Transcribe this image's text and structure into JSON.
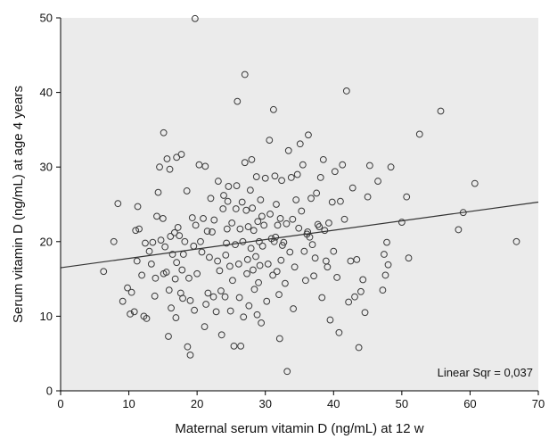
{
  "chart_data": {
    "type": "scatter",
    "title": "",
    "xlabel": "Maternal serum vitamin D (ng/mL) at 12 w",
    "ylabel": "Serum vitamin D (ng/mL) at age 4 years",
    "xlim": [
      0,
      70
    ],
    "ylim": [
      0,
      50
    ],
    "x_ticks": [
      0,
      10,
      20,
      30,
      40,
      50,
      60,
      70
    ],
    "y_ticks": [
      0,
      10,
      20,
      30,
      40,
      50
    ],
    "grid": false,
    "annotation": "Linear Sqr = 0,037",
    "fit_line": {
      "type": "linear",
      "x": [
        0,
        70
      ],
      "y": [
        16.5,
        25.3
      ]
    },
    "colors": {
      "plot_background": "#ebebeb",
      "marker_stroke": "#3a3a3a",
      "fit_line": "#333333",
      "axis": "#000000"
    },
    "points": [
      [
        6.3,
        16.0
      ],
      [
        7.8,
        20.0
      ],
      [
        8.4,
        25.1
      ],
      [
        9.1,
        12.0
      ],
      [
        9.8,
        13.8
      ],
      [
        10.2,
        10.3
      ],
      [
        10.4,
        13.2
      ],
      [
        10.8,
        10.6
      ],
      [
        11.0,
        21.5
      ],
      [
        11.2,
        17.4
      ],
      [
        11.3,
        24.7
      ],
      [
        11.5,
        21.7
      ],
      [
        11.9,
        15.5
      ],
      [
        12.2,
        10.0
      ],
      [
        12.4,
        19.8
      ],
      [
        12.6,
        9.7
      ],
      [
        13.0,
        18.7
      ],
      [
        13.3,
        17.0
      ],
      [
        13.5,
        19.9
      ],
      [
        13.8,
        12.7
      ],
      [
        13.9,
        15.1
      ],
      [
        14.1,
        23.4
      ],
      [
        14.3,
        26.6
      ],
      [
        14.5,
        30.0
      ],
      [
        14.7,
        20.2
      ],
      [
        15.1,
        15.7
      ],
      [
        15.1,
        34.6
      ],
      [
        15.0,
        23.1
      ],
      [
        15.3,
        19.3
      ],
      [
        15.5,
        15.9
      ],
      [
        15.6,
        31.1
      ],
      [
        15.9,
        13.5
      ],
      [
        15.8,
        7.3
      ],
      [
        16.0,
        29.7
      ],
      [
        16.1,
        20.7
      ],
      [
        16.2,
        11.1
      ],
      [
        16.4,
        18.3
      ],
      [
        16.7,
        21.2
      ],
      [
        16.8,
        15.0
      ],
      [
        16.9,
        9.8
      ],
      [
        17.0,
        31.3
      ],
      [
        17.0,
        17.2
      ],
      [
        17.2,
        21.9
      ],
      [
        17.4,
        20.8
      ],
      [
        17.7,
        31.7
      ],
      [
        17.8,
        16.2
      ],
      [
        17.6,
        13.1
      ],
      [
        17.9,
        12.4
      ],
      [
        18.0,
        18.3
      ],
      [
        18.2,
        20.0
      ],
      [
        18.5,
        26.8
      ],
      [
        18.6,
        5.9
      ],
      [
        18.8,
        15.1
      ],
      [
        19.0,
        12.1
      ],
      [
        19.0,
        4.8
      ],
      [
        19.3,
        23.2
      ],
      [
        19.5,
        19.4
      ],
      [
        19.6,
        10.8
      ],
      [
        19.8,
        22.2
      ],
      [
        19.7,
        49.9
      ],
      [
        20.0,
        15.7
      ],
      [
        20.3,
        30.3
      ],
      [
        20.5,
        20.0
      ],
      [
        20.7,
        18.6
      ],
      [
        20.9,
        23.1
      ],
      [
        21.1,
        8.6
      ],
      [
        21.3,
        11.6
      ],
      [
        21.5,
        21.4
      ],
      [
        21.6,
        13.1
      ],
      [
        21.8,
        17.9
      ],
      [
        22.0,
        25.8
      ],
      [
        22.2,
        21.3
      ],
      [
        22.4,
        12.6
      ],
      [
        22.5,
        22.9
      ],
      [
        22.8,
        10.6
      ],
      [
        23.0,
        17.4
      ],
      [
        23.1,
        28.1
      ],
      [
        23.3,
        16.1
      ],
      [
        23.5,
        13.4
      ],
      [
        23.6,
        7.5
      ],
      [
        23.8,
        24.4
      ],
      [
        23.9,
        26.2
      ],
      [
        24.1,
        12.6
      ],
      [
        24.2,
        18.2
      ],
      [
        24.4,
        21.7
      ],
      [
        24.5,
        25.4
      ],
      [
        24.6,
        27.4
      ],
      [
        24.8,
        16.7
      ],
      [
        24.9,
        10.7
      ],
      [
        25.1,
        22.5
      ],
      [
        25.2,
        14.8
      ],
      [
        25.4,
        6.0
      ],
      [
        25.6,
        19.6
      ],
      [
        25.7,
        24.4
      ],
      [
        25.8,
        27.5
      ],
      [
        25.9,
        38.8
      ],
      [
        26.1,
        17.0
      ],
      [
        26.2,
        12.5
      ],
      [
        26.3,
        21.7
      ],
      [
        26.4,
        6.0
      ],
      [
        26.6,
        25.3
      ],
      [
        26.7,
        20.0
      ],
      [
        26.8,
        9.9
      ],
      [
        27.0,
        30.6
      ],
      [
        27.0,
        42.4
      ],
      [
        27.2,
        24.2
      ],
      [
        27.3,
        15.7
      ],
      [
        27.4,
        17.6
      ],
      [
        27.5,
        22.0
      ],
      [
        27.6,
        11.4
      ],
      [
        27.8,
        26.9
      ],
      [
        27.9,
        19.1
      ],
      [
        28.0,
        31.0
      ],
      [
        28.1,
        24.5
      ],
      [
        28.2,
        16.2
      ],
      [
        28.3,
        21.5
      ],
      [
        28.4,
        13.6
      ],
      [
        28.6,
        18.0
      ],
      [
        28.7,
        28.7
      ],
      [
        28.8,
        10.2
      ],
      [
        28.9,
        22.7
      ],
      [
        29.0,
        14.5
      ],
      [
        29.1,
        20.0
      ],
      [
        29.2,
        16.8
      ],
      [
        29.3,
        25.6
      ],
      [
        29.4,
        9.1
      ],
      [
        29.5,
        23.4
      ],
      [
        29.6,
        19.4
      ],
      [
        29.8,
        22.2
      ],
      [
        30.0,
        28.5
      ],
      [
        30.2,
        12.0
      ],
      [
        30.4,
        17.0
      ],
      [
        30.6,
        33.6
      ],
      [
        30.7,
        23.7
      ],
      [
        30.9,
        20.4
      ],
      [
        31.1,
        15.5
      ],
      [
        31.2,
        37.7
      ],
      [
        31.3,
        20.0
      ],
      [
        31.4,
        28.8
      ],
      [
        31.5,
        20.6
      ],
      [
        31.6,
        25.0
      ],
      [
        31.7,
        16.0
      ],
      [
        31.8,
        22.2
      ],
      [
        32.0,
        12.9
      ],
      [
        32.1,
        7.0
      ],
      [
        32.2,
        23.1
      ],
      [
        32.3,
        17.5
      ],
      [
        32.4,
        28.2
      ],
      [
        32.5,
        19.5
      ],
      [
        32.7,
        19.9
      ],
      [
        32.9,
        14.4
      ],
      [
        33.1,
        22.4
      ],
      [
        33.2,
        2.6
      ],
      [
        33.4,
        32.2
      ],
      [
        33.6,
        18.6
      ],
      [
        33.8,
        28.6
      ],
      [
        34.0,
        23.0
      ],
      [
        34.1,
        11.0
      ],
      [
        34.3,
        16.6
      ],
      [
        34.5,
        25.6
      ],
      [
        34.7,
        29.0
      ],
      [
        34.9,
        21.8
      ],
      [
        35.1,
        33.1
      ],
      [
        35.3,
        24.1
      ],
      [
        35.5,
        30.3
      ],
      [
        35.7,
        18.7
      ],
      [
        35.9,
        14.8
      ],
      [
        36.1,
        21.0
      ],
      [
        36.3,
        34.3
      ],
      [
        36.5,
        20.6
      ],
      [
        36.7,
        25.8
      ],
      [
        36.9,
        19.6
      ],
      [
        37.1,
        15.4
      ],
      [
        37.3,
        17.8
      ],
      [
        37.5,
        26.5
      ],
      [
        37.7,
        22.3
      ],
      [
        37.9,
        22.0
      ],
      [
        38.1,
        28.6
      ],
      [
        38.3,
        12.5
      ],
      [
        38.5,
        31.0
      ],
      [
        38.7,
        21.5
      ],
      [
        38.9,
        17.4
      ],
      [
        39.1,
        16.6
      ],
      [
        39.3,
        22.5
      ],
      [
        39.5,
        9.5
      ],
      [
        39.8,
        25.3
      ],
      [
        40.0,
        18.7
      ],
      [
        40.2,
        29.4
      ],
      [
        40.5,
        15.2
      ],
      [
        40.8,
        7.8
      ],
      [
        41.0,
        25.4
      ],
      [
        41.3,
        30.3
      ],
      [
        41.6,
        23.0
      ],
      [
        41.9,
        40.2
      ],
      [
        42.2,
        11.9
      ],
      [
        42.5,
        17.4
      ],
      [
        42.8,
        27.2
      ],
      [
        43.1,
        12.6
      ],
      [
        43.4,
        17.6
      ],
      [
        43.7,
        5.8
      ],
      [
        44.0,
        13.3
      ],
      [
        44.3,
        14.9
      ],
      [
        44.6,
        10.5
      ],
      [
        45.0,
        26.0
      ],
      [
        45.3,
        30.2
      ],
      [
        46.5,
        28.1
      ],
      [
        47.2,
        13.5
      ],
      [
        47.4,
        18.3
      ],
      [
        47.6,
        15.5
      ],
      [
        47.8,
        19.9
      ],
      [
        48.0,
        16.9
      ],
      [
        48.4,
        30.0
      ],
      [
        50.0,
        22.6
      ],
      [
        50.7,
        26.0
      ],
      [
        51.0,
        17.8
      ],
      [
        52.6,
        34.4
      ],
      [
        55.7,
        37.5
      ],
      [
        58.3,
        21.6
      ],
      [
        59.0,
        23.9
      ],
      [
        60.7,
        27.8
      ],
      [
        66.8,
        20.0
      ],
      [
        24.3,
        19.8
      ],
      [
        21.2,
        30.1
      ],
      [
        36.2,
        21.3
      ]
    ]
  }
}
